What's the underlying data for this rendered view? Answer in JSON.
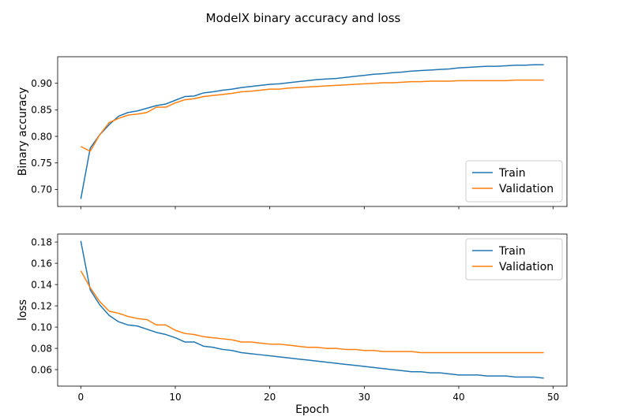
{
  "chart_data": {
    "title": "ModelX binary accuracy and loss",
    "type": "line",
    "xlabel": "Epoch",
    "x": [
      0,
      1,
      2,
      3,
      4,
      5,
      6,
      7,
      8,
      9,
      10,
      11,
      12,
      13,
      14,
      15,
      16,
      17,
      18,
      19,
      20,
      21,
      22,
      23,
      24,
      25,
      26,
      27,
      28,
      29,
      30,
      31,
      32,
      33,
      34,
      35,
      36,
      37,
      38,
      39,
      40,
      41,
      42,
      43,
      44,
      45,
      46,
      47,
      48,
      49
    ],
    "xticks": [
      "0",
      "10",
      "20",
      "30",
      "40",
      "50"
    ],
    "xlim": [
      -2.45,
      51.45
    ],
    "colors": {
      "train": "#1f77b4",
      "validation": "#ff7f0e"
    },
    "panels": [
      {
        "id": "accuracy",
        "ylabel": "Binary accuracy",
        "ylim": [
          0.668,
          0.95
        ],
        "yticks": [
          "0.70",
          "0.75",
          "0.80",
          "0.85",
          "0.90"
        ],
        "legend_position": "lower-right",
        "series": [
          {
            "name": "Train",
            "values": [
              0.682,
              0.778,
              0.803,
              0.822,
              0.838,
              0.845,
              0.848,
              0.853,
              0.858,
              0.861,
              0.868,
              0.875,
              0.876,
              0.882,
              0.884,
              0.887,
              0.889,
              0.892,
              0.894,
              0.896,
              0.898,
              0.899,
              0.901,
              0.903,
              0.905,
              0.907,
              0.908,
              0.909,
              0.911,
              0.913,
              0.915,
              0.917,
              0.918,
              0.92,
              0.921,
              0.923,
              0.924,
              0.925,
              0.926,
              0.927,
              0.929,
              0.93,
              0.931,
              0.932,
              0.932,
              0.933,
              0.934,
              0.934,
              0.935,
              0.935
            ]
          },
          {
            "name": "Validation",
            "values": [
              0.781,
              0.772,
              0.803,
              0.826,
              0.834,
              0.84,
              0.842,
              0.845,
              0.855,
              0.855,
              0.863,
              0.869,
              0.871,
              0.875,
              0.877,
              0.879,
              0.881,
              0.884,
              0.885,
              0.887,
              0.889,
              0.889,
              0.891,
              0.892,
              0.893,
              0.894,
              0.895,
              0.896,
              0.897,
              0.898,
              0.899,
              0.9,
              0.901,
              0.901,
              0.902,
              0.903,
              0.903,
              0.904,
              0.904,
              0.904,
              0.905,
              0.905,
              0.905,
              0.905,
              0.905,
              0.905,
              0.906,
              0.906,
              0.906,
              0.906
            ]
          }
        ]
      },
      {
        "id": "loss",
        "ylabel": "loss",
        "ylim": [
          0.0445,
          0.1875
        ],
        "yticks": [
          "0.06",
          "0.08",
          "0.10",
          "0.12",
          "0.14",
          "0.16",
          "0.18"
        ],
        "legend_position": "upper-right",
        "series": [
          {
            "name": "Train",
            "values": [
              0.181,
              0.135,
              0.121,
              0.111,
              0.105,
              0.102,
              0.101,
              0.098,
              0.095,
              0.093,
              0.09,
              0.086,
              0.086,
              0.082,
              0.081,
              0.079,
              0.078,
              0.076,
              0.075,
              0.074,
              0.073,
              0.072,
              0.071,
              0.07,
              0.069,
              0.068,
              0.067,
              0.066,
              0.065,
              0.064,
              0.063,
              0.062,
              0.061,
              0.06,
              0.059,
              0.058,
              0.058,
              0.057,
              0.057,
              0.056,
              0.055,
              0.055,
              0.055,
              0.054,
              0.054,
              0.054,
              0.053,
              0.053,
              0.053,
              0.052
            ]
          },
          {
            "name": "Validation",
            "values": [
              0.153,
              0.137,
              0.124,
              0.115,
              0.113,
              0.11,
              0.108,
              0.107,
              0.102,
              0.102,
              0.097,
              0.094,
              0.093,
              0.091,
              0.09,
              0.089,
              0.088,
              0.086,
              0.086,
              0.085,
              0.084,
              0.084,
              0.083,
              0.082,
              0.081,
              0.081,
              0.08,
              0.08,
              0.079,
              0.079,
              0.078,
              0.078,
              0.077,
              0.077,
              0.077,
              0.077,
              0.076,
              0.076,
              0.076,
              0.076,
              0.076,
              0.076,
              0.076,
              0.076,
              0.076,
              0.076,
              0.076,
              0.076,
              0.076,
              0.076
            ]
          }
        ]
      }
    ]
  }
}
